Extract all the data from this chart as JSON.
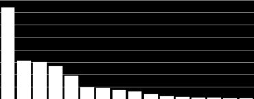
{
  "values": [
    100,
    42,
    40,
    36,
    25,
    13,
    12,
    10,
    8,
    5,
    3,
    2,
    1.5,
    1.2,
    1.0,
    0.8
  ],
  "bar_color": "#ffffff",
  "background_color": "#000000",
  "grid_color": "#999999",
  "ylim": [
    0,
    108
  ],
  "bar_width": 0.85,
  "grid_linewidth": 0.6,
  "num_grid_lines": 8
}
